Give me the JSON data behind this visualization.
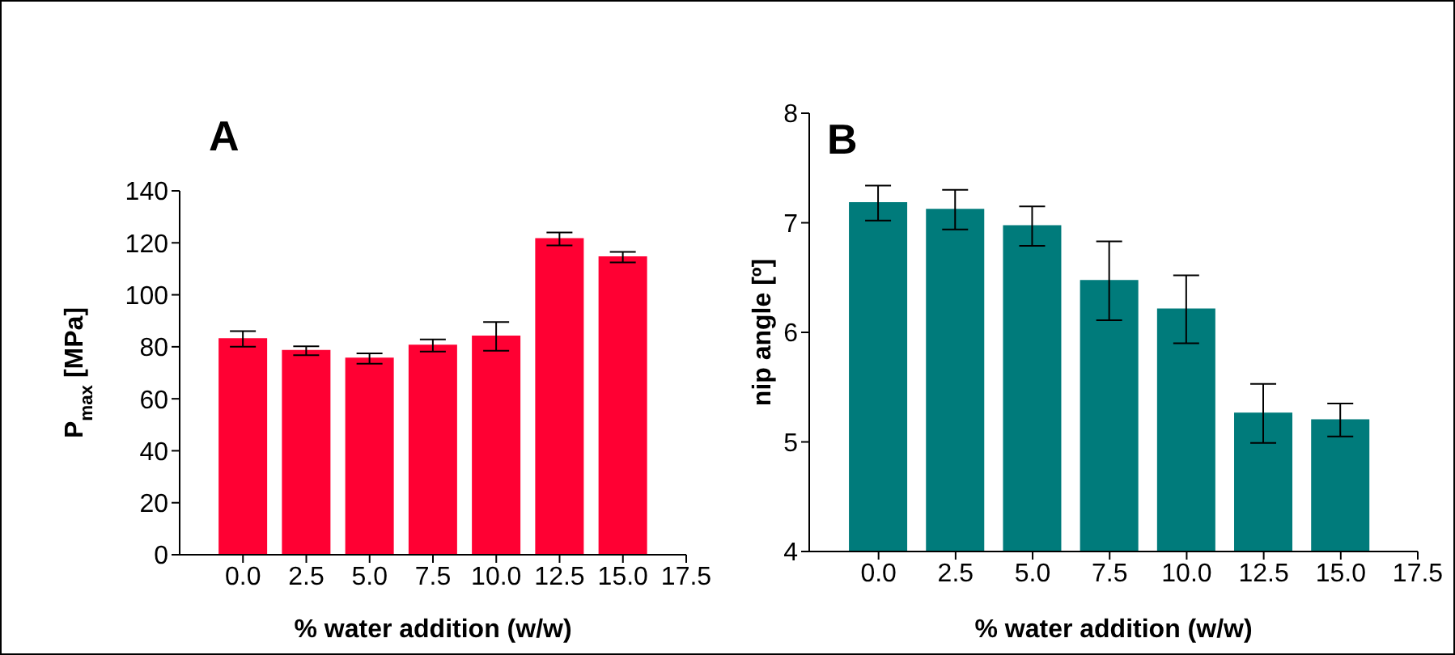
{
  "chart_data": [
    {
      "type": "bar",
      "title": "A",
      "xlabel": "% water addition (w/w)",
      "ylabel": "P$_{max}$ [MPa]",
      "color": "#ff0033",
      "x": [
        0,
        2.5,
        5,
        7.5,
        10,
        12.5,
        15
      ],
      "values": [
        83,
        78.5,
        75.5,
        80.5,
        84,
        121.5,
        114.5
      ],
      "errors": [
        3,
        1.7,
        2,
        2.3,
        5.5,
        2.5,
        2
      ],
      "xlim": [
        -2.5,
        17.5
      ],
      "xticks": [
        {
          "value": 0,
          "label": "0.0"
        },
        {
          "value": 2.5,
          "label": "2.5"
        },
        {
          "value": 5,
          "label": "5.0"
        },
        {
          "value": 7.5,
          "label": "7.5"
        },
        {
          "value": 10,
          "label": "10.0"
        },
        {
          "value": 12.5,
          "label": "12.5"
        },
        {
          "value": 15,
          "label": "15.0"
        },
        {
          "value": 17.5,
          "label": "17.5"
        }
      ],
      "ylim": [
        0,
        140
      ],
      "yticks": [
        0,
        20,
        40,
        60,
        80,
        100,
        120,
        140
      ]
    },
    {
      "type": "bar",
      "title": "B",
      "xlabel": "% water addition (w/w)",
      "ylabel": "nip angle [º]",
      "color": "#007b7b",
      "x": [
        0,
        2.5,
        5,
        7.5,
        10,
        12.5,
        15
      ],
      "values": [
        7.18,
        7.12,
        6.97,
        6.47,
        6.21,
        5.26,
        5.2
      ],
      "errors": [
        0.16,
        0.18,
        0.18,
        0.36,
        0.31,
        0.27,
        0.15
      ],
      "xlim": [
        -2.25,
        17.5
      ],
      "xticks": [
        {
          "value": 0,
          "label": "0.0"
        },
        {
          "value": 2.5,
          "label": "2.5"
        },
        {
          "value": 5,
          "label": "5.0"
        },
        {
          "value": 7.5,
          "label": "7.5"
        },
        {
          "value": 10,
          "label": "10.0"
        },
        {
          "value": 12.5,
          "label": "12.5"
        },
        {
          "value": 15,
          "label": "15.0"
        },
        {
          "value": 17.5,
          "label": "17.5"
        }
      ],
      "ylim": [
        4,
        8
      ],
      "yticks": [
        4,
        5,
        6,
        7,
        8
      ]
    }
  ]
}
